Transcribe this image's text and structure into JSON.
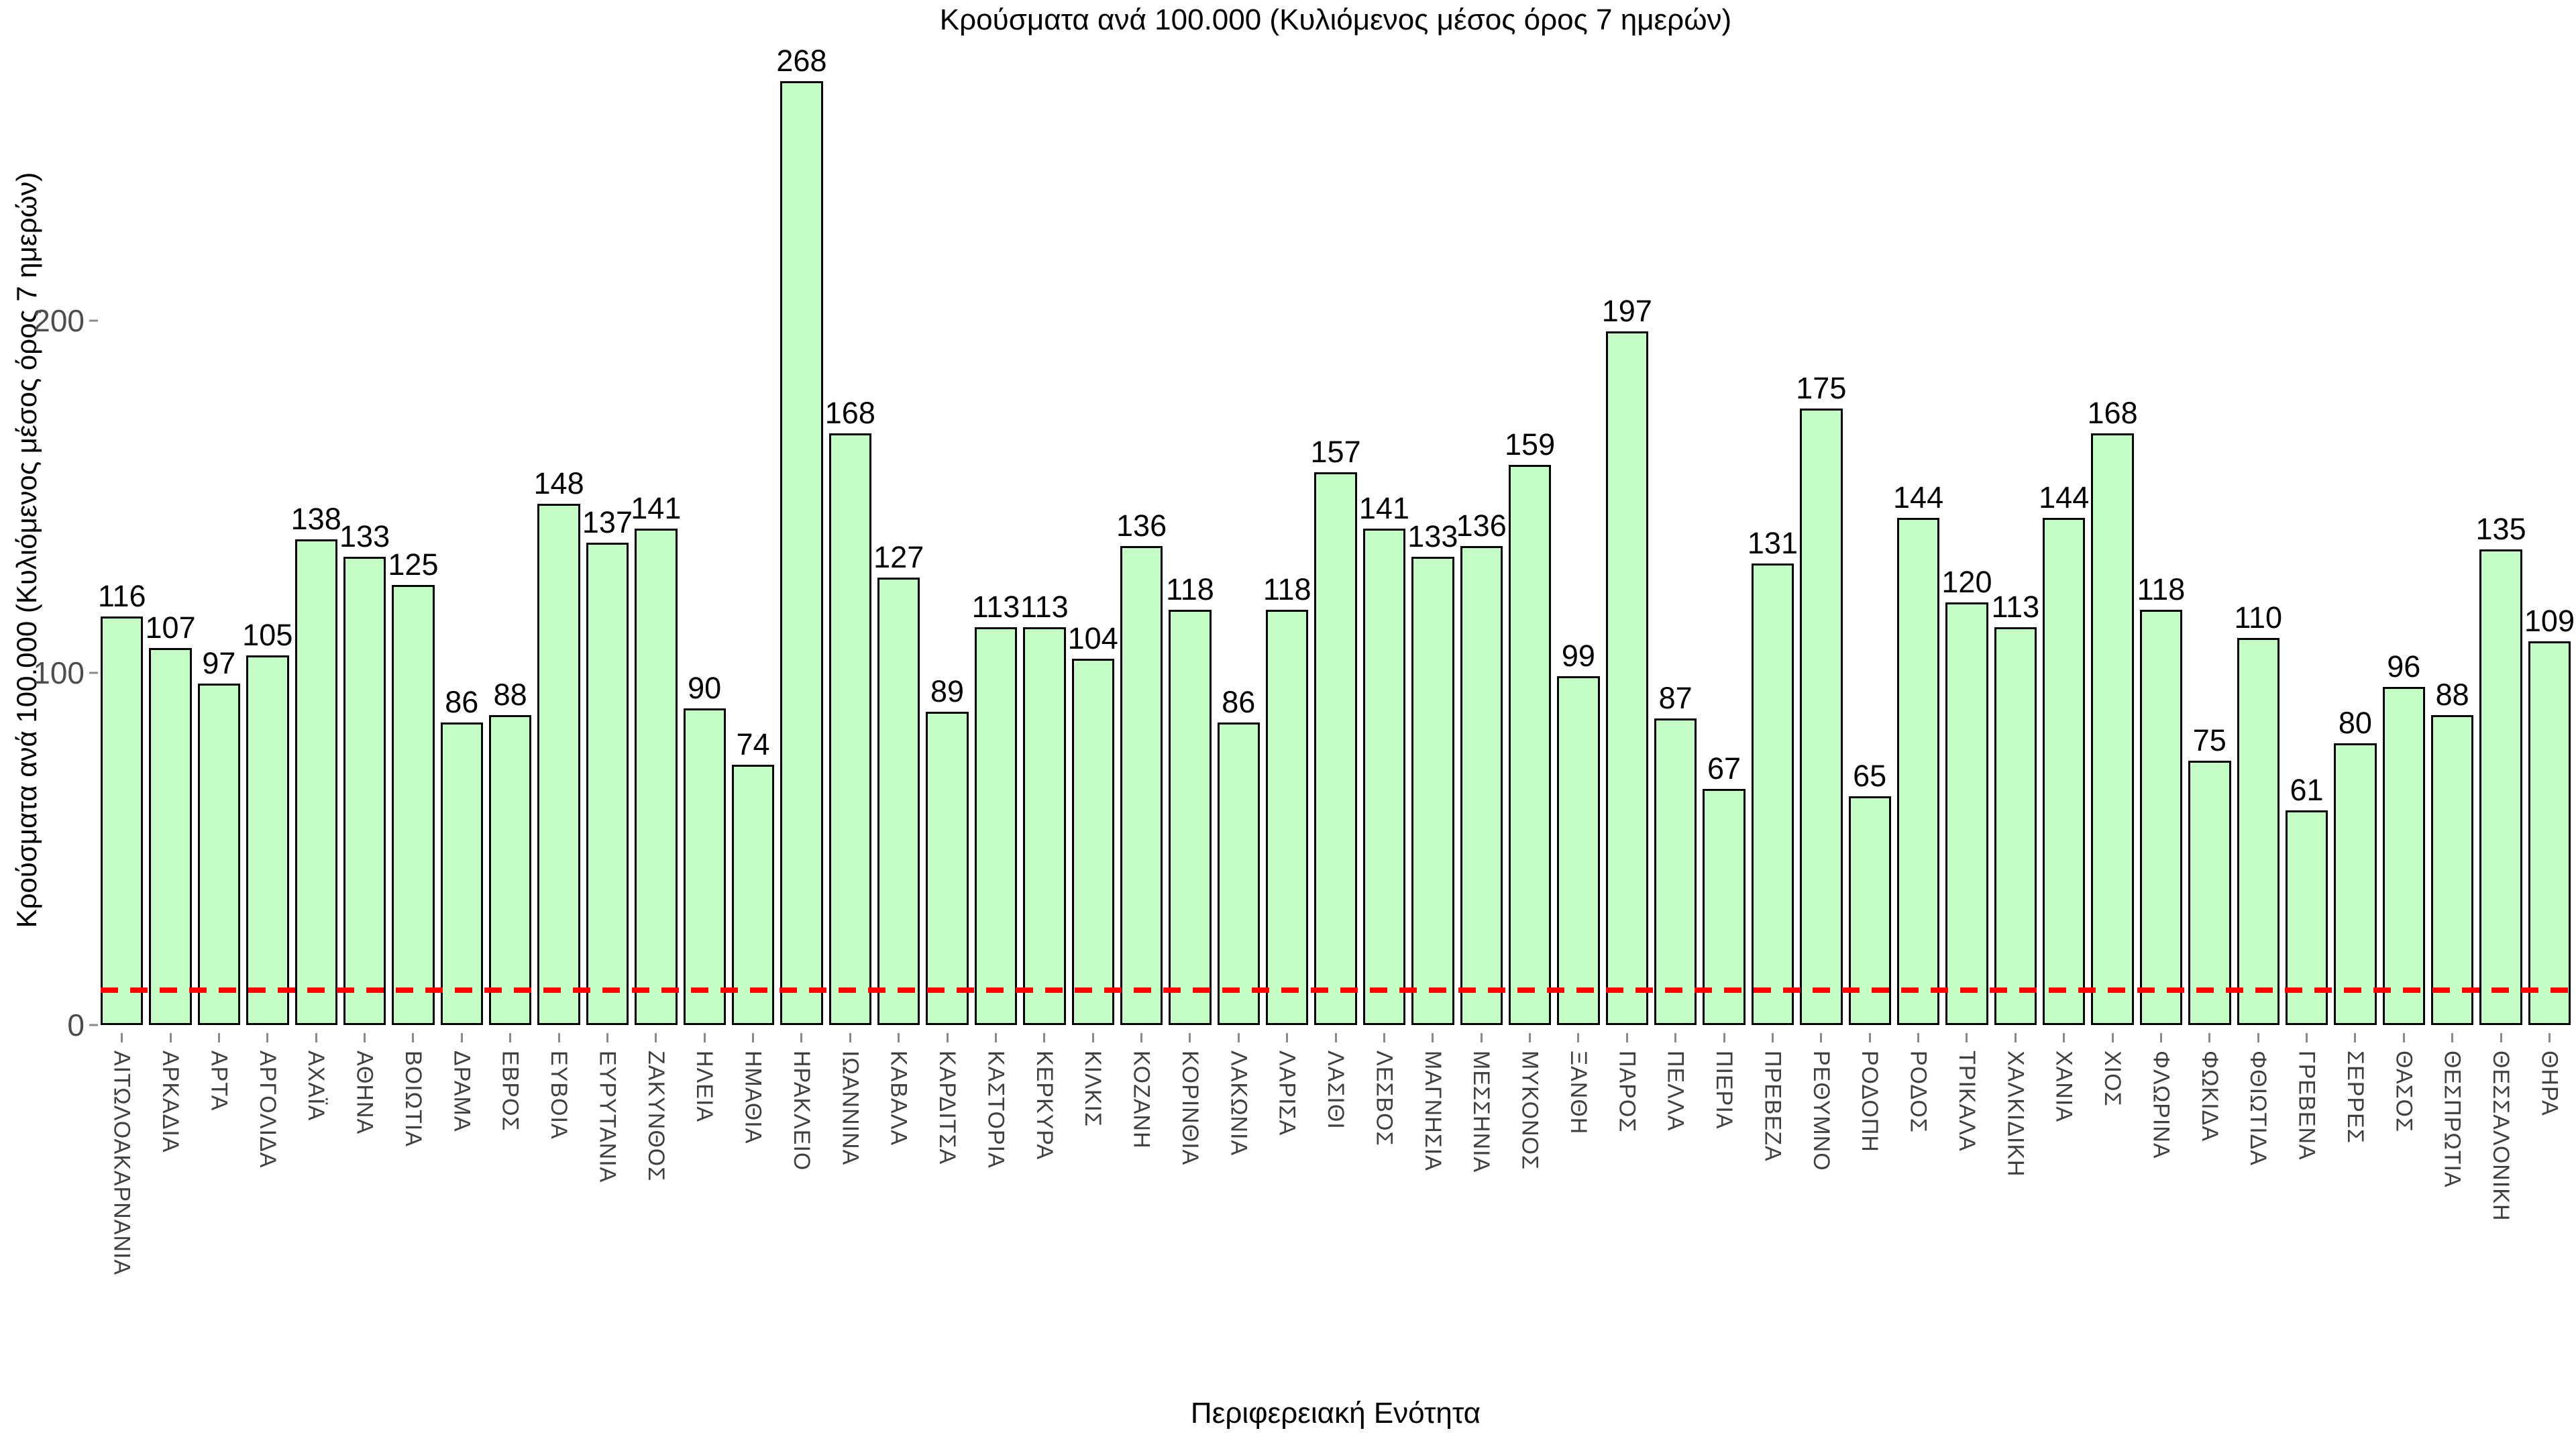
{
  "colors": {
    "bar_fill": "#c5fec5",
    "bar_border": "#000000",
    "threshold_line": "#ff0000",
    "y_tick_text": "#4d4d4d",
    "x_tick_text": "#404040",
    "title_text": "#000000",
    "background": "#ffffff"
  },
  "chart_data": {
    "type": "bar",
    "title": "Κρούσματα ανά 100.000 (Κυλιόμενος μέσος όρος 7 ημερών)",
    "xlabel": "Περιφερειακή Ενότητα",
    "ylabel": "Κρούσματα ανά 100.000 (Κυλιόμενος μέσος όρος 7 ημερών)",
    "yticks": [
      0,
      100,
      200
    ],
    "ylim": [
      0,
      285
    ],
    "grid": false,
    "legend": false,
    "threshold_line": {
      "value": 10,
      "style": "dashed",
      "color": "#ff0000"
    },
    "categories": [
      "ΑΙΤΩΛΟΑΚΑΡΝΑΝΙΑ",
      "ΑΡΚΑΔΙΑ",
      "ΑΡΤΑ",
      "ΑΡΓΟΛΙΔΑ",
      "ΑΧΑΪΑ",
      "ΑΘΗΝΑ",
      "ΒΟΙΩΤΙΑ",
      "ΔΡΑΜΑ",
      "ΕΒΡΟΣ",
      "ΕΥΒΟΙΑ",
      "ΕΥΡΥΤΑΝΙΑ",
      "ΖΑΚΥΝΘΟΣ",
      "ΗΛΕΙΑ",
      "ΗΜΑΘΙΑ",
      "ΗΡΑΚΛΕΙΟ",
      "ΙΩΑΝΝΙΝΑ",
      "ΚΑΒΑΛΑ",
      "ΚΑΡΔΙΤΣΑ",
      "ΚΑΣΤΟΡΙΑ",
      "ΚΕΡΚΥΡΑ",
      "ΚΙΛΚΙΣ",
      "ΚΟΖΑΝΗ",
      "ΚΟΡΙΝΘΙΑ",
      "ΛΑΚΩΝΙΑ",
      "ΛΑΡΙΣΑ",
      "ΛΑΣΙΘΙ",
      "ΛΕΣΒΟΣ",
      "ΜΑΓΝΗΣΙΑ",
      "ΜΕΣΣΗΝΙΑ",
      "ΜΥΚΟΝΟΣ",
      "ΞΑΝΘΗ",
      "ΠΑΡΟΣ",
      "ΠΕΛΛΑ",
      "ΠΙΕΡΙΑ",
      "ΠΡΕΒΕΖΑ",
      "ΡΕΘΥΜΝΟ",
      "ΡΟΔΟΠΗ",
      "ΡΟΔΟΣ",
      "ΤΡΙΚΑΛΑ",
      "ΧΑΛΚΙΔΙΚΗ",
      "ΧΑΝΙΑ",
      "ΧΙΟΣ",
      "ΦΛΩΡΙΝΑ",
      "ΦΩΚΙΔΑ",
      "ΦΘΙΩΤΙΔΑ",
      "ΓΡΕΒΕΝΑ",
      "ΣΕΡΡΕΣ",
      "ΘΑΣΟΣ",
      "ΘΕΣΠΡΩΤΙΑ",
      "ΘΕΣΣΑΛΟΝΙΚΗ",
      "ΘΗΡΑ"
    ],
    "values": [
      116,
      107,
      97,
      105,
      138,
      133,
      125,
      86,
      88,
      148,
      137,
      141,
      90,
      74,
      268,
      168,
      127,
      89,
      113,
      113,
      104,
      136,
      118,
      86,
      118,
      157,
      141,
      133,
      136,
      159,
      99,
      197,
      87,
      67,
      131,
      175,
      65,
      144,
      120,
      113,
      144,
      168,
      118,
      75,
      110,
      61,
      80,
      96,
      88,
      135,
      109
    ]
  }
}
